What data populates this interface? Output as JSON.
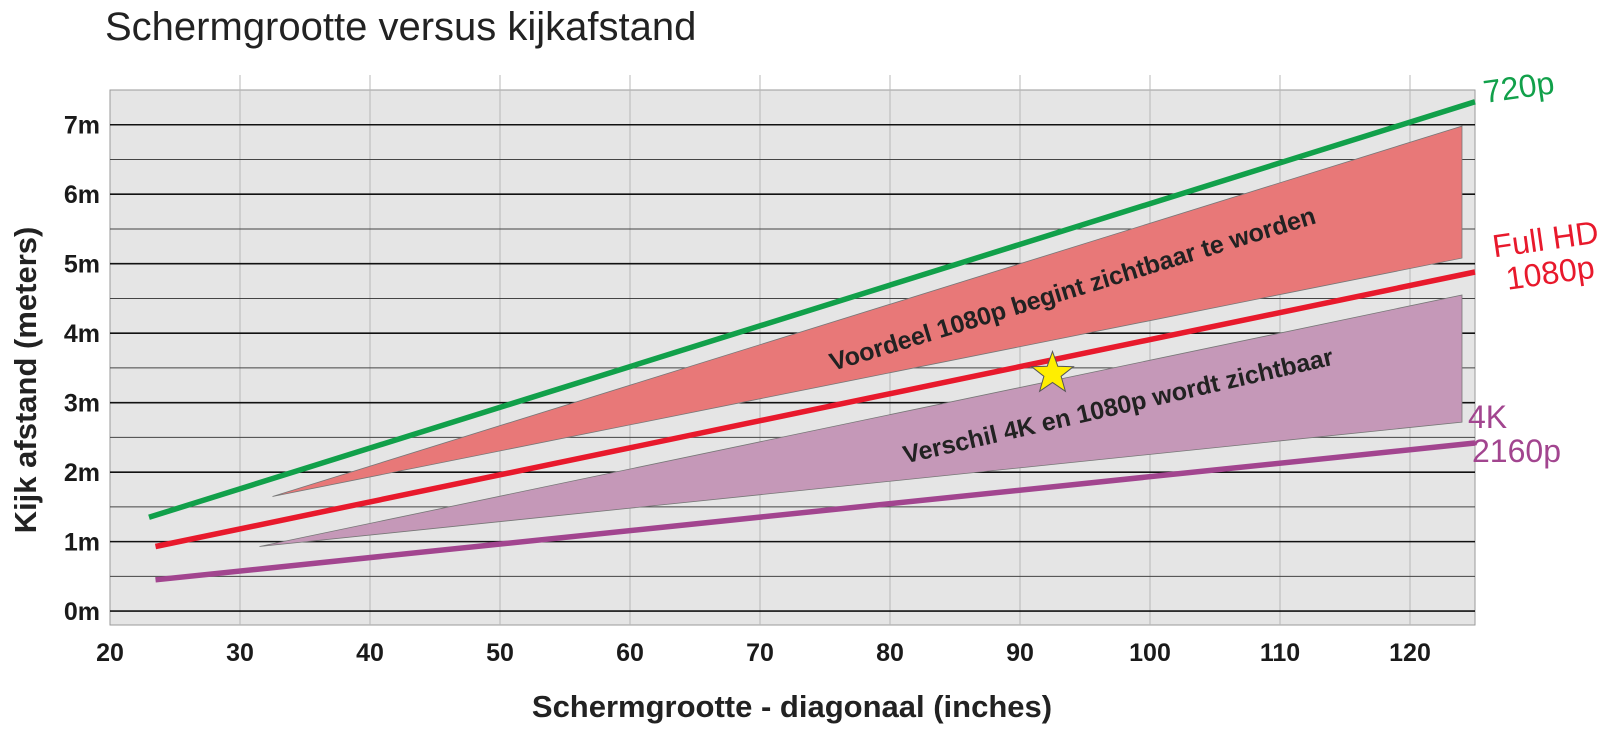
{
  "chart_data": {
    "type": "line",
    "title": "Schermgrootte versus kijkafstand",
    "xlabel": "Schermgrootte - diagonaal (inches)",
    "ylabel": "Kijk afstand (meters)",
    "xlim": [
      20,
      125
    ],
    "ylim": [
      -0.2,
      7.5
    ],
    "x_ticks": [
      {
        "value": 20,
        "label": "20"
      },
      {
        "value": 30,
        "label": "30"
      },
      {
        "value": 40,
        "label": "40"
      },
      {
        "value": 50,
        "label": "50"
      },
      {
        "value": 60,
        "label": "60"
      },
      {
        "value": 70,
        "label": "70"
      },
      {
        "value": 80,
        "label": "80"
      },
      {
        "value": 90,
        "label": "90"
      },
      {
        "value": 100,
        "label": "100"
      },
      {
        "value": 110,
        "label": "110"
      },
      {
        "value": 120,
        "label": "120"
      }
    ],
    "y_ticks": [
      {
        "value": 0,
        "label": "0m"
      },
      {
        "value": 1,
        "label": "1m"
      },
      {
        "value": 2,
        "label": "2m"
      },
      {
        "value": 3,
        "label": "3m"
      },
      {
        "value": 4,
        "label": "4m"
      },
      {
        "value": 5,
        "label": "5m"
      },
      {
        "value": 6,
        "label": "6m"
      },
      {
        "value": 7,
        "label": "7m"
      }
    ],
    "y_minor_gridlines": [
      0.5,
      1.5,
      2.5,
      3.5,
      4.5,
      5.5,
      6.5
    ],
    "grid": true,
    "background_color": "#e5e5e5",
    "series": [
      {
        "name": "720p",
        "label_lines": [
          "720p"
        ],
        "color": "#11a04a",
        "x": [
          23,
          125
        ],
        "y": [
          1.35,
          7.33
        ]
      },
      {
        "name": "Full HD 1080p",
        "label_lines": [
          "Full HD",
          "1080p"
        ],
        "color": "#e8192c",
        "x": [
          23.5,
          125
        ],
        "y": [
          0.93,
          4.88
        ]
      },
      {
        "name": "4K 2160p",
        "label_lines": [
          "4K",
          "2160p"
        ],
        "color": "#a2458f",
        "x": [
          23.5,
          125
        ],
        "y": [
          0.45,
          2.42
        ]
      }
    ],
    "bands": [
      {
        "label": "Voordeel 1080p begint zichtbaar te worden",
        "color": "#e87878",
        "polygon": [
          [
            32.5,
            1.65
          ],
          [
            124,
            6.98
          ],
          [
            124,
            5.08
          ]
        ]
      },
      {
        "label": "Verschil 4K en 1080p wordt zichtbaar",
        "color": "#c598b8",
        "polygon": [
          [
            31.5,
            0.93
          ],
          [
            124,
            4.55
          ],
          [
            124,
            2.72
          ]
        ]
      }
    ],
    "annotations": [
      {
        "type": "star",
        "x": 92.5,
        "y": 3.42,
        "color": "#ffee00"
      }
    ]
  }
}
